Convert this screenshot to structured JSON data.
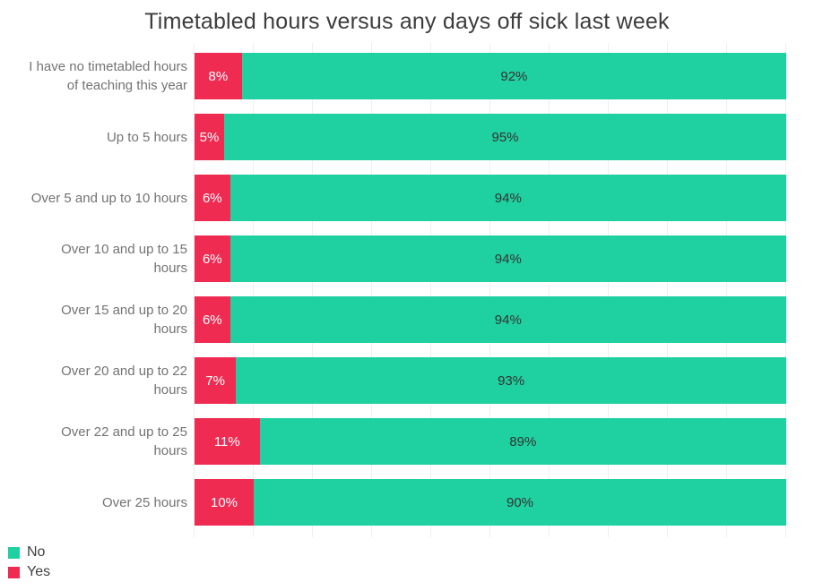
{
  "title": "Timetabled hours versus any days off sick last week",
  "colors": {
    "no": "#1fd0a0",
    "yes": "#ef2b52",
    "title_text": "#3d3d3d",
    "category_text": "#737373",
    "no_value_text": "#333333",
    "yes_value_text": "#ffffff",
    "gridline": "#efefef"
  },
  "chart_data": {
    "type": "bar",
    "orientation": "horizontal",
    "stacked": true,
    "title": "Timetabled hours versus any days off sick last week",
    "xlabel": "",
    "ylabel": "",
    "xlim": [
      0,
      100
    ],
    "grid": "vertical gridlines every 10%",
    "legend_position": "bottom-left",
    "value_labels": "percent shown inside each segment",
    "categories": [
      "I have no timetabled hours\nof teaching this year",
      "Up to 5 hours",
      "Over 5 and up to 10 hours",
      "Over 10 and up to 15\nhours",
      "Over 15 and up to 20\nhours",
      "Over 20 and up to 22\nhours",
      "Over 22 and up to 25\nhours",
      "Over 25 hours"
    ],
    "series": [
      {
        "name": "Yes",
        "color": "#ef2b52",
        "values": [
          8,
          5,
          6,
          6,
          6,
          7,
          11,
          10
        ],
        "labels": [
          "8%",
          "5%",
          "6%",
          "6%",
          "6%",
          "7%",
          "11%",
          "10%"
        ]
      },
      {
        "name": "No",
        "color": "#1fd0a0",
        "values": [
          92,
          95,
          94,
          94,
          94,
          93,
          89,
          90
        ],
        "labels": [
          "92%",
          "95%",
          "94%",
          "94%",
          "94%",
          "93%",
          "89%",
          "90%"
        ]
      }
    ]
  },
  "legend": {
    "items": [
      {
        "label": "No",
        "color": "#1fd0a0"
      },
      {
        "label": "Yes",
        "color": "#ef2b52"
      }
    ]
  }
}
